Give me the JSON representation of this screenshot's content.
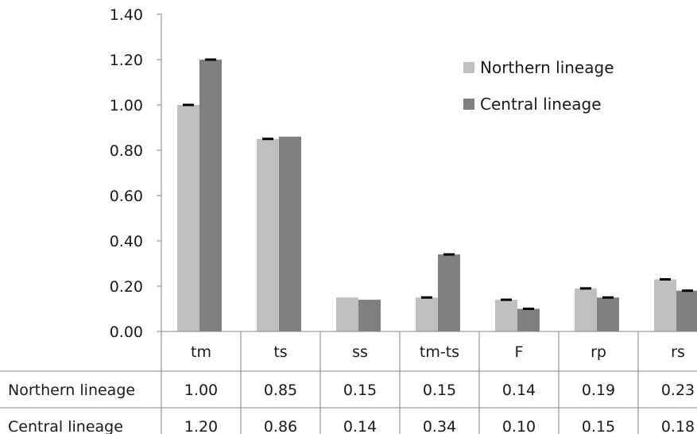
{
  "chart_data": {
    "type": "bar",
    "categories": [
      "tm",
      "ts",
      "ss",
      "tm-ts",
      "F",
      "rp",
      "rs"
    ],
    "series": [
      {
        "name": "Northern lineage",
        "values": [
          1.0,
          0.85,
          0.15,
          0.15,
          0.14,
          0.19,
          0.23
        ],
        "labels": [
          "1.00",
          "0.85",
          "0.15",
          "0.15",
          "0.14",
          "0.19",
          "0.23"
        ],
        "color": "#c0c0c0"
      },
      {
        "name": "Central lineage",
        "values": [
          1.2,
          0.86,
          0.14,
          0.34,
          0.1,
          0.15,
          0.18
        ],
        "labels": [
          "1.20",
          "0.86",
          "0.14",
          "0.34",
          "0.10",
          "0.15",
          "0.18"
        ],
        "color": "#808080"
      }
    ],
    "error_bars_shown": [
      [
        true,
        true,
        false,
        true,
        true,
        true,
        true
      ],
      [
        true,
        false,
        false,
        true,
        true,
        true,
        true
      ]
    ],
    "ylim": [
      0,
      1.4
    ],
    "yticks": [
      "0.00",
      "0.20",
      "0.40",
      "0.60",
      "0.80",
      "1.00",
      "1.20",
      "1.40"
    ],
    "legend_position": "top-right",
    "data_table": true,
    "error_bar_color": "#000000"
  }
}
